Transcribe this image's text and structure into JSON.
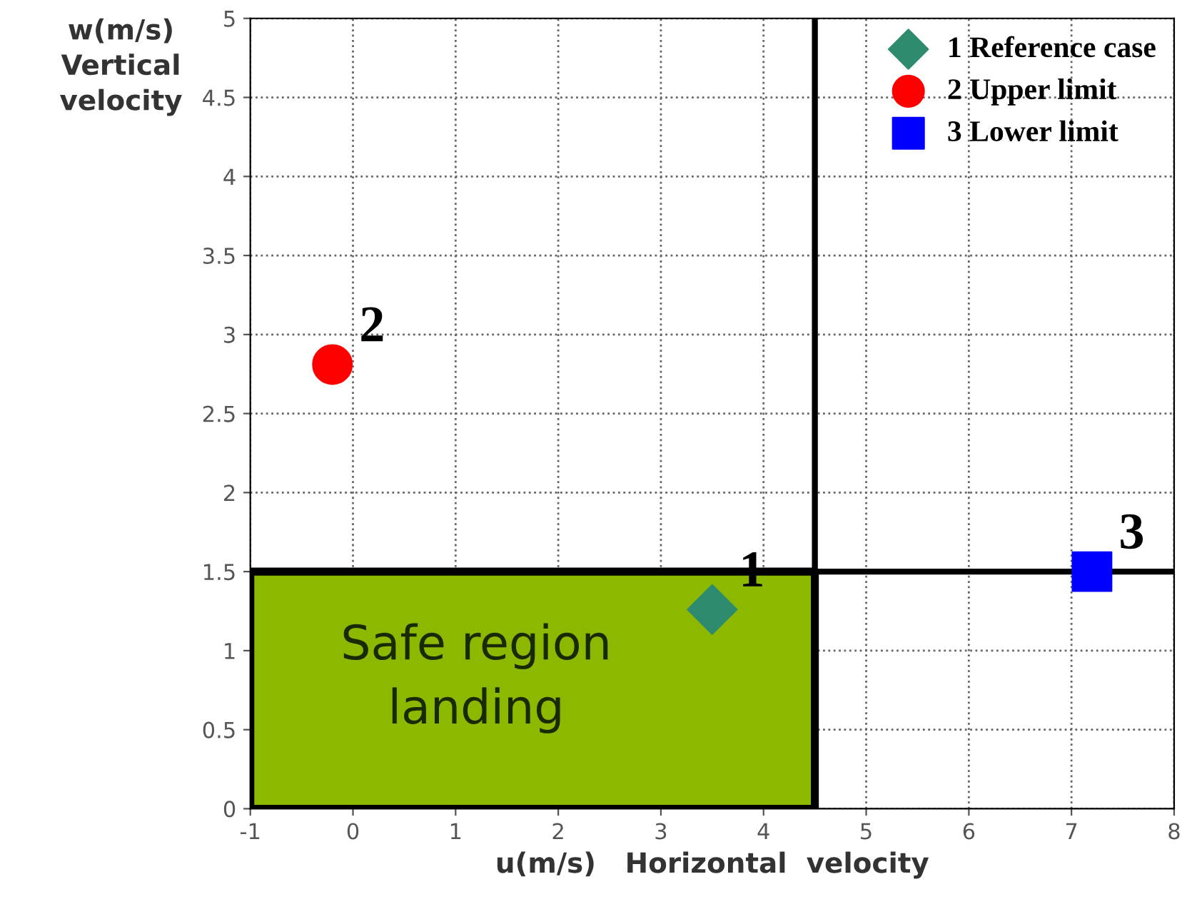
{
  "chart_data": {
    "type": "scatter",
    "xlabel": "u(m/s)   Horizontal  velocity",
    "ylabel": "w(m/s)\nVertical\nvelocity",
    "xlim": [
      -1,
      8
    ],
    "ylim": [
      0,
      5
    ],
    "xticks": [
      -1,
      0,
      1,
      2,
      3,
      4,
      5,
      6,
      7,
      8
    ],
    "yticks": [
      0,
      0.5,
      1,
      1.5,
      2,
      2.5,
      3,
      3.5,
      4,
      4.5,
      5
    ],
    "grid": true,
    "line_style": "dotted",
    "legend": "top right",
    "series": [
      {
        "type": "area",
        "color": "#8cb800",
        "x": [
          -1,
          4.5
        ],
        "values": [
          1.5,
          1.5
        ]
      },
      {
        "name": "1 Reference case",
        "color": "#2e8b70",
        "marker": "diamond",
        "x": [
          3.5
        ],
        "values": [
          1.26
        ]
      },
      {
        "name": "2 Upper limit",
        "color": "#ff0000",
        "marker": "circle",
        "x": [
          -0.2
        ],
        "values": [
          2.81
        ]
      },
      {
        "name": "3 Lower limit",
        "color": "#0000ff",
        "marker": "square",
        "x": [
          7.2
        ],
        "values": [
          1.5
        ]
      }
    ],
    "ref_lines": [
      {
        "axis": "x",
        "value": 4.5,
        "color": "#000000"
      },
      {
        "axis": "y",
        "value": 1.5,
        "color": "#000000"
      }
    ],
    "annotations": [
      "Safe region\nlanding",
      {
        "text": "1",
        "x": 3.5,
        "y": 1.26
      },
      {
        "text": "2",
        "x": -0.2,
        "y": 2.81
      },
      {
        "text": "3",
        "x": 7.2,
        "y": 1.5
      }
    ]
  }
}
